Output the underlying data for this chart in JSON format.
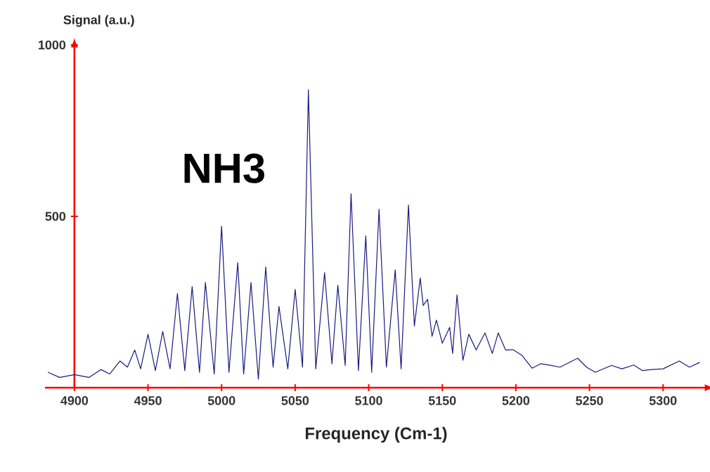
{
  "chart_data": {
    "type": "line",
    "xlabel": "Frequency (Cm-1)",
    "ylabel": "Signal (a.u.)",
    "annotations": [
      "NH3"
    ],
    "x": [
      4882,
      4890,
      4900,
      4910,
      4918,
      4924,
      4931,
      4936,
      4941,
      4945,
      4950,
      4955,
      4960,
      4965,
      4970,
      4975,
      4980,
      4985,
      4989,
      4995,
      5000,
      5005,
      5011,
      5015,
      5020,
      5025,
      5030,
      5035,
      5039,
      5045,
      5050,
      5055,
      5059,
      5064,
      5070,
      5075,
      5079,
      5084,
      5088,
      5093,
      5098,
      5102,
      5107,
      5112,
      5118,
      5122,
      5127,
      5131,
      5135,
      5137,
      5140,
      5143,
      5146,
      5150,
      5155,
      5157,
      5160,
      5164,
      5168,
      5173,
      5179,
      5184,
      5188,
      5193,
      5198,
      5204,
      5211,
      5217,
      5223,
      5230,
      5242,
      5248,
      5254,
      5265,
      5272,
      5280,
      5286,
      5292,
      5300,
      5311,
      5318,
      5325
    ],
    "series": [
      {
        "color": "#1a1a80",
        "values": [
          45,
          30,
          38,
          30,
          53,
          40,
          78,
          60,
          110,
          55,
          156,
          50,
          164,
          55,
          275,
          50,
          295,
          45,
          307,
          40,
          471,
          45,
          365,
          40,
          307,
          25,
          352,
          60,
          237,
          55,
          287,
          60,
          869,
          55,
          336,
          70,
          299,
          65,
          566,
          50,
          443,
          45,
          521,
          60,
          344,
          55,
          533,
          180,
          320,
          240,
          258,
          150,
          197,
          130,
          176,
          100,
          271,
          80,
          156,
          110,
          160,
          100,
          160,
          110,
          111,
          95,
          57,
          70,
          66,
          60,
          86,
          60,
          45,
          65,
          55,
          66,
          50,
          53,
          55,
          78,
          60,
          74
        ]
      }
    ],
    "xlim": [
      4880,
      5330
    ],
    "ylim": [
      0,
      1000
    ],
    "xticks": [
      4900,
      4950,
      5000,
      5050,
      5100,
      5150,
      5200,
      5250,
      5300
    ],
    "yticks": [
      500,
      1000
    ],
    "marker": "none"
  }
}
